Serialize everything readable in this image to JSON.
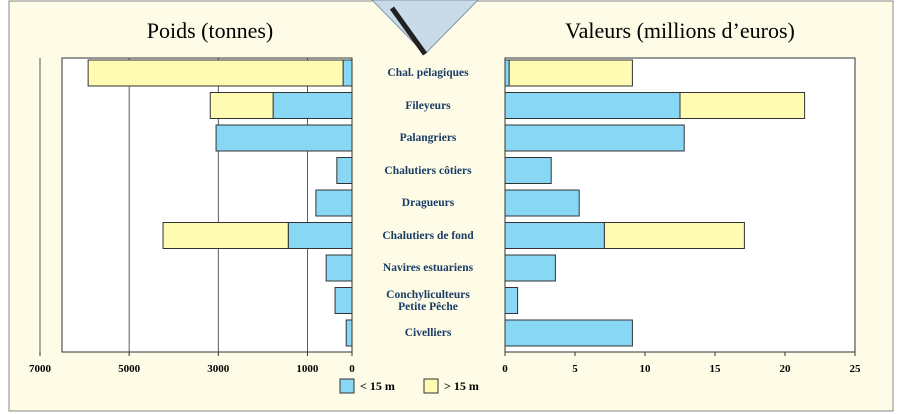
{
  "chart_data": [
    {
      "type": "hbar-stacked",
      "title": "Poids (tonnes)",
      "categories": [
        "Chal. pélagiques",
        "Fileyeurs",
        "Palangriers",
        "Chalutiers  côtiers",
        "Dragueurs",
        "Chalutiers de fond",
        "Navires estuariens",
        "Conchyliculteurs Petite Pêche",
        "Civelliers"
      ],
      "series": [
        {
          "name": "< 15 m",
          "color": "#88d7f4",
          "values": [
            200,
            1770,
            3050,
            340,
            810,
            1430,
            580,
            380,
            130
          ]
        },
        {
          "name": "> 15 m",
          "color": "#fffbb2",
          "values": [
            5720,
            1410,
            0,
            0,
            0,
            2810,
            0,
            0,
            0
          ]
        }
      ],
      "xlim": [
        7000,
        0
      ],
      "xticks": [
        7000,
        5000,
        3000,
        1000,
        0
      ],
      "grid": true
    },
    {
      "type": "hbar-stacked",
      "title": "Valeurs (millions d’euros)",
      "series": [
        {
          "color": "#88d7f4",
          "values": [
            0.3,
            12.5,
            12.8,
            3.3,
            5.3,
            7.1,
            3.6,
            0.9,
            9.1
          ]
        },
        {
          "color": "#fffbb2",
          "values": [
            8.8,
            8.9,
            0,
            0,
            0,
            10.0,
            0,
            0,
            0
          ]
        }
      ],
      "xlim": [
        0,
        25
      ],
      "xticks": [
        0,
        5,
        10,
        15,
        20,
        25
      ],
      "grid": false
    }
  ]
}
